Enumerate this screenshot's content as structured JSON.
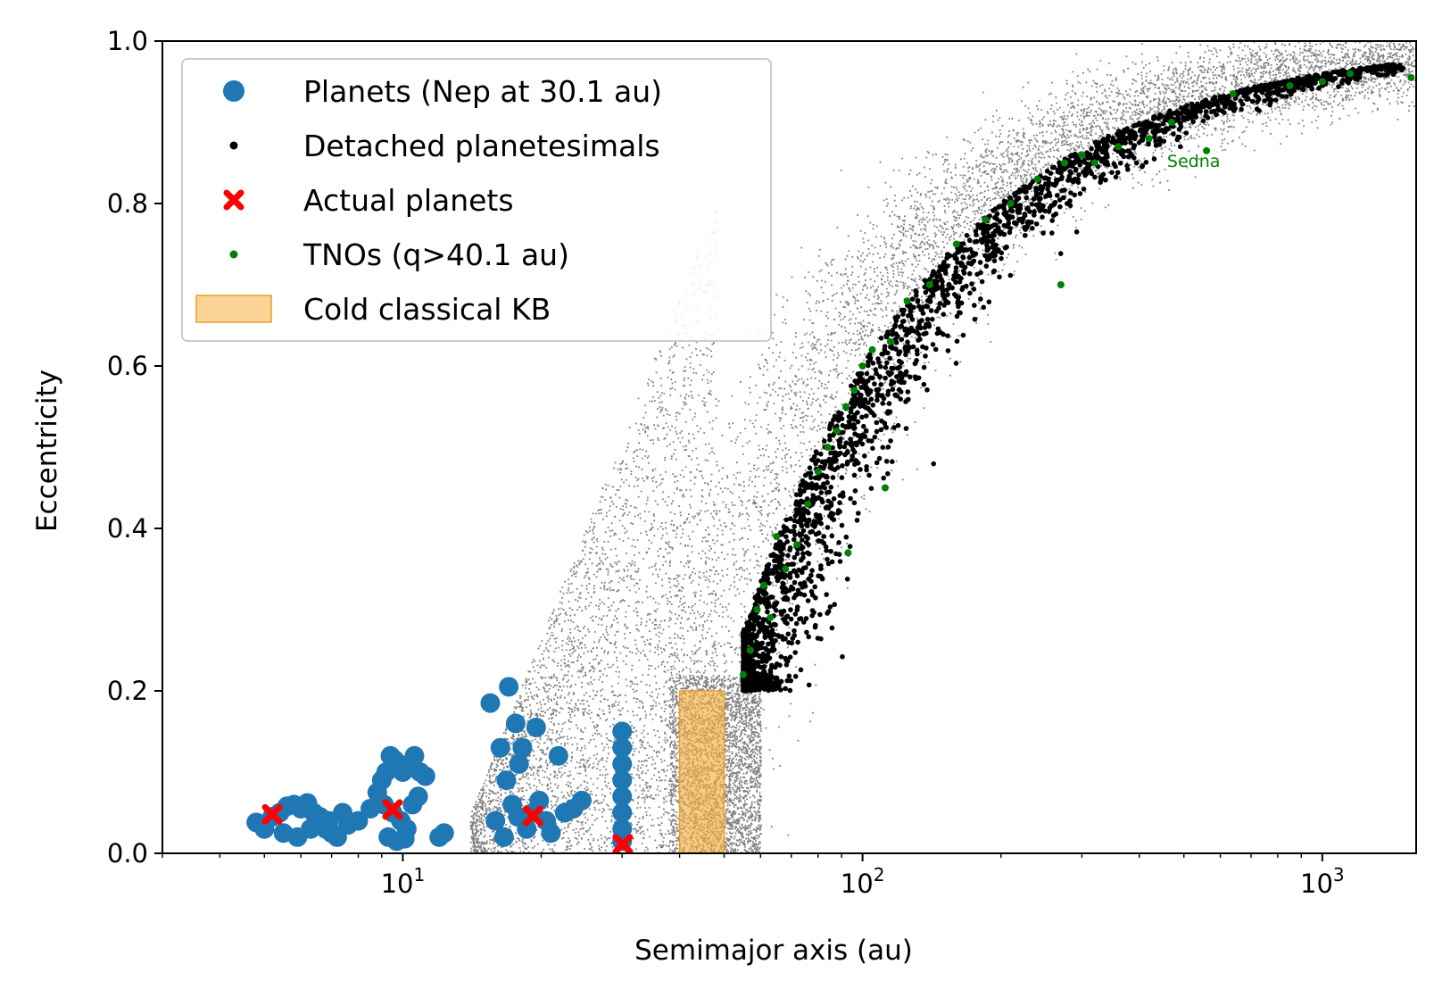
{
  "chart_data": {
    "type": "scatter",
    "title": "",
    "xlabel": "Semimajor axis (au)",
    "ylabel": "Eccentricity",
    "xscale": "log",
    "xlim": [
      3,
      1600
    ],
    "ylim": [
      0.0,
      1.0
    ],
    "x_ticks": [
      {
        "value": 10,
        "base": "10",
        "exp": "1"
      },
      {
        "value": 100,
        "base": "10",
        "exp": "2"
      },
      {
        "value": 1000,
        "base": "10",
        "exp": "3"
      }
    ],
    "y_ticks": [
      "0.0",
      "0.2",
      "0.4",
      "0.6",
      "0.8",
      "1.0"
    ],
    "grid": false,
    "legend": {
      "placement": "top-left",
      "entries": [
        {
          "label": "Planets (Nep at 30.1 au)",
          "marker": "circle",
          "color": "#1f77b4"
        },
        {
          "label": "Detached planetesimals",
          "marker": "dot",
          "color": "#000000"
        },
        {
          "label": "Actual planets",
          "marker": "x",
          "color": "#ff0000"
        },
        {
          "label": "TNOs (q>40.1 au)",
          "marker": "dot",
          "color": "#008000"
        },
        {
          "label": "Cold classical KB",
          "marker": "patch",
          "color": "#f5b041"
        }
      ]
    },
    "series": [
      {
        "name": "Planets (Nep at 30.1 au)",
        "color": "#1f77b4",
        "points": [
          [
            4.8,
            0.038
          ],
          [
            5.0,
            0.03
          ],
          [
            5.2,
            0.045
          ],
          [
            5.4,
            0.05
          ],
          [
            5.6,
            0.058
          ],
          [
            5.8,
            0.06
          ],
          [
            6.0,
            0.055
          ],
          [
            6.2,
            0.062
          ],
          [
            6.4,
            0.05
          ],
          [
            6.6,
            0.045
          ],
          [
            6.8,
            0.03
          ],
          [
            7.0,
            0.025
          ],
          [
            7.2,
            0.02
          ],
          [
            7.4,
            0.05
          ],
          [
            5.5,
            0.025
          ],
          [
            5.9,
            0.02
          ],
          [
            6.3,
            0.03
          ],
          [
            6.9,
            0.04
          ],
          [
            7.6,
            0.035
          ],
          [
            8.0,
            0.04
          ],
          [
            8.5,
            0.055
          ],
          [
            8.8,
            0.075
          ],
          [
            9.0,
            0.09
          ],
          [
            9.2,
            0.1
          ],
          [
            9.4,
            0.12
          ],
          [
            9.6,
            0.115
          ],
          [
            9.8,
            0.11
          ],
          [
            10.0,
            0.1
          ],
          [
            10.3,
            0.105
          ],
          [
            10.6,
            0.12
          ],
          [
            10.9,
            0.1
          ],
          [
            11.2,
            0.095
          ],
          [
            9.1,
            0.06
          ],
          [
            9.5,
            0.05
          ],
          [
            9.9,
            0.04
          ],
          [
            10.2,
            0.03
          ],
          [
            10.5,
            0.06
          ],
          [
            10.8,
            0.07
          ],
          [
            9.3,
            0.02
          ],
          [
            9.7,
            0.015
          ],
          [
            10.1,
            0.018
          ],
          [
            12.0,
            0.02
          ],
          [
            12.3,
            0.025
          ],
          [
            15.5,
            0.185
          ],
          [
            16.3,
            0.13
          ],
          [
            17.0,
            0.205
          ],
          [
            17.6,
            0.16
          ],
          [
            18.2,
            0.13
          ],
          [
            17.9,
            0.11
          ],
          [
            16.8,
            0.09
          ],
          [
            17.3,
            0.06
          ],
          [
            17.8,
            0.045
          ],
          [
            18.6,
            0.03
          ],
          [
            19.2,
            0.05
          ],
          [
            19.8,
            0.065
          ],
          [
            20.5,
            0.04
          ],
          [
            21.0,
            0.025
          ],
          [
            19.5,
            0.155
          ],
          [
            21.8,
            0.12
          ],
          [
            22.5,
            0.05
          ],
          [
            23.5,
            0.055
          ],
          [
            24.5,
            0.065
          ],
          [
            15.9,
            0.04
          ],
          [
            16.6,
            0.02
          ],
          [
            30.0,
            0.15
          ],
          [
            30.0,
            0.11
          ],
          [
            30.0,
            0.09
          ],
          [
            30.0,
            0.07
          ],
          [
            30.0,
            0.05
          ],
          [
            30.0,
            0.03
          ],
          [
            30.0,
            0.015
          ],
          [
            30.0,
            0.13
          ]
        ]
      },
      {
        "name": "Actual planets",
        "color": "#ff0000",
        "points": [
          [
            5.2,
            0.048
          ],
          [
            9.5,
            0.054
          ],
          [
            19.2,
            0.046
          ],
          [
            30.1,
            0.011
          ]
        ]
      },
      {
        "name": "TNOs (q>40.1 au)",
        "color": "#008000",
        "points": [
          [
            55,
            0.22
          ],
          [
            57,
            0.25
          ],
          [
            59,
            0.3
          ],
          [
            61,
            0.33
          ],
          [
            63,
            0.29
          ],
          [
            65,
            0.39
          ],
          [
            68,
            0.35
          ],
          [
            72,
            0.38
          ],
          [
            76,
            0.43
          ],
          [
            80,
            0.47
          ],
          [
            84,
            0.5
          ],
          [
            88,
            0.52
          ],
          [
            92,
            0.55
          ],
          [
            96,
            0.57
          ],
          [
            100,
            0.6
          ],
          [
            105,
            0.62
          ],
          [
            115,
            0.63
          ],
          [
            125,
            0.68
          ],
          [
            140,
            0.7
          ],
          [
            160,
            0.75
          ],
          [
            185,
            0.78
          ],
          [
            210,
            0.8
          ],
          [
            240,
            0.83
          ],
          [
            275,
            0.85
          ],
          [
            300,
            0.86
          ],
          [
            320,
            0.85
          ],
          [
            360,
            0.87
          ],
          [
            420,
            0.88
          ],
          [
            470,
            0.9
          ],
          [
            560,
            0.865
          ],
          [
            640,
            0.935
          ],
          [
            850,
            0.945
          ],
          [
            1000,
            0.95
          ],
          [
            1150,
            0.96
          ],
          [
            1560,
            0.955
          ],
          [
            270,
            0.7
          ],
          [
            93,
            0.37
          ],
          [
            112,
            0.45
          ]
        ]
      }
    ],
    "annotations": [
      {
        "text": "Sedna",
        "x": 525,
        "y": 0.845,
        "color": "#008000"
      }
    ],
    "shaded_region": {
      "name": "Cold classical KB",
      "x_range": [
        40,
        50
      ],
      "y_range": [
        0.0,
        0.2
      ],
      "color": "#f5b041"
    }
  }
}
